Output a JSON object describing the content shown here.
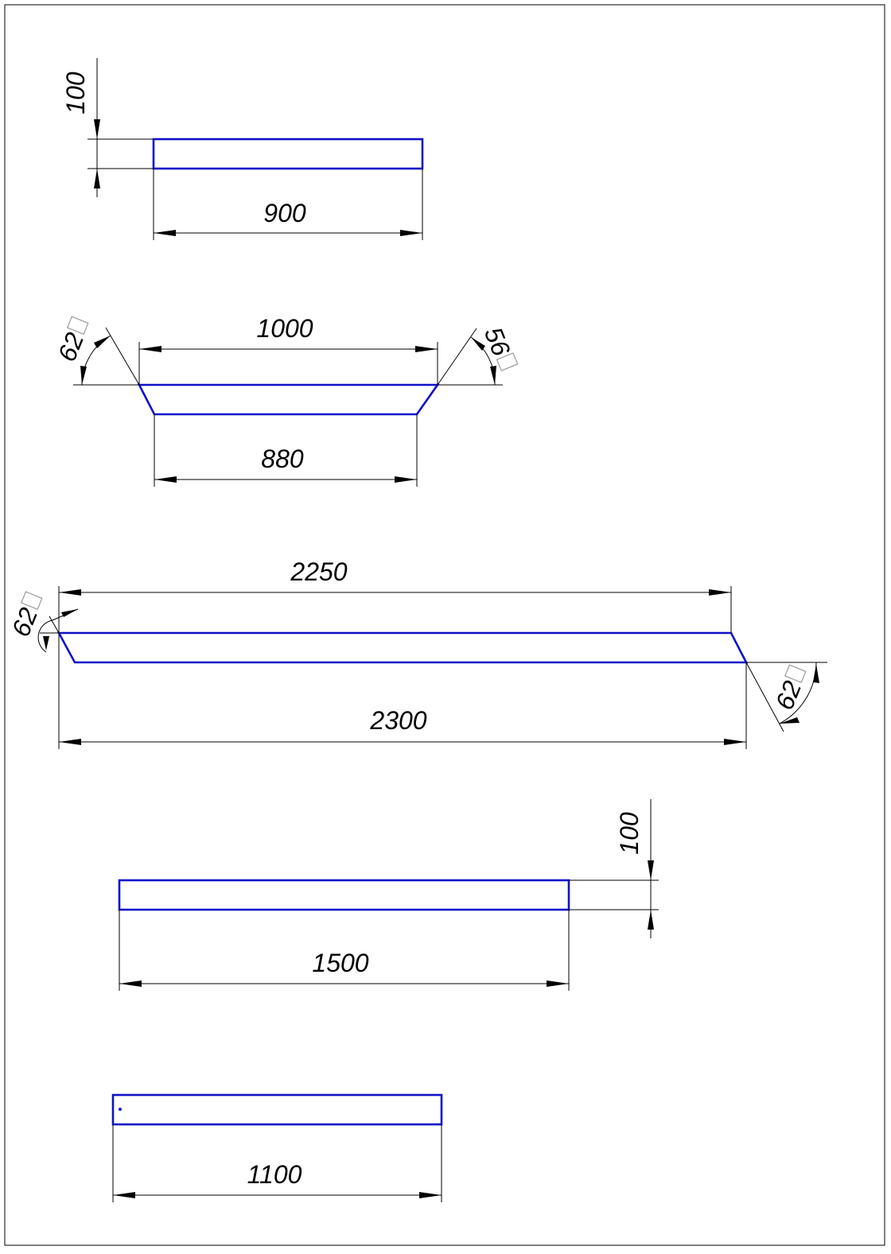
{
  "colors": {
    "part": "#1010c8",
    "line": "#000000"
  },
  "parts": [
    {
      "id": "part-1",
      "dimensions": [
        "900",
        "100"
      ]
    },
    {
      "id": "part-2",
      "dimensions": [
        "1000",
        "880"
      ],
      "angles": [
        "62",
        "56"
      ]
    },
    {
      "id": "part-3",
      "dimensions": [
        "2250",
        "2300"
      ],
      "angles": [
        "62",
        "62"
      ]
    },
    {
      "id": "part-4",
      "dimensions": [
        "1500",
        "100"
      ]
    },
    {
      "id": "part-5",
      "dimensions": [
        "1100"
      ]
    }
  ]
}
